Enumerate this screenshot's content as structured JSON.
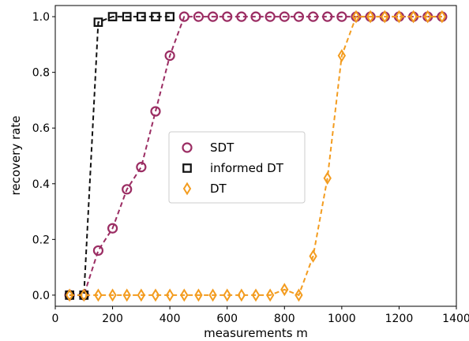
{
  "chart_data": {
    "type": "line",
    "xlabel": "measurements m",
    "ylabel": "recovery rate",
    "xlim": [
      0,
      1400
    ],
    "ylim": [
      -0.04,
      1.04
    ],
    "xticks": [
      0,
      200,
      400,
      600,
      800,
      1000,
      1200,
      1400
    ],
    "yticks": [
      0.0,
      0.2,
      0.4,
      0.6,
      0.8,
      1.0
    ],
    "xtick_labels": [
      "0",
      "200",
      "400",
      "600",
      "800",
      "1000",
      "1200",
      "1400"
    ],
    "ytick_labels": [
      "0.0",
      "0.2",
      "0.4",
      "0.6",
      "0.8",
      "1.0"
    ],
    "grid": false,
    "legend_position": "center",
    "series": [
      {
        "name": "SDT",
        "color": "#9b2d63",
        "marker": "circle",
        "x": [
          50,
          100,
          150,
          200,
          250,
          300,
          350,
          400,
          450,
          500,
          550,
          600,
          650,
          700,
          750,
          800,
          850,
          900,
          950,
          1000,
          1050,
          1100,
          1150,
          1200,
          1250,
          1300,
          1350
        ],
        "y": [
          0.0,
          0.0,
          0.16,
          0.24,
          0.38,
          0.46,
          0.66,
          0.86,
          1.0,
          1.0,
          1.0,
          1.0,
          1.0,
          1.0,
          1.0,
          1.0,
          1.0,
          1.0,
          1.0,
          1.0,
          1.0,
          1.0,
          1.0,
          1.0,
          1.0,
          1.0,
          1.0
        ]
      },
      {
        "name": "informed DT",
        "color": "#111111",
        "marker": "square",
        "x": [
          50,
          100,
          150,
          200,
          250,
          300,
          350,
          400
        ],
        "y": [
          0.0,
          0.0,
          0.98,
          1.0,
          1.0,
          1.0,
          1.0,
          1.0
        ]
      },
      {
        "name": "DT",
        "color": "#f39c1f",
        "marker": "diamond",
        "x": [
          50,
          100,
          150,
          200,
          250,
          300,
          350,
          400,
          450,
          500,
          550,
          600,
          650,
          700,
          750,
          800,
          850,
          900,
          950,
          1000,
          1050,
          1100,
          1150,
          1200,
          1250,
          1300,
          1350
        ],
        "y": [
          0.0,
          0.0,
          0.0,
          0.0,
          0.0,
          0.0,
          0.0,
          0.0,
          0.0,
          0.0,
          0.0,
          0.0,
          0.0,
          0.0,
          0.0,
          0.02,
          0.0,
          0.14,
          0.42,
          0.86,
          1.0,
          1.0,
          1.0,
          1.0,
          1.0,
          1.0,
          1.0
        ]
      }
    ]
  }
}
